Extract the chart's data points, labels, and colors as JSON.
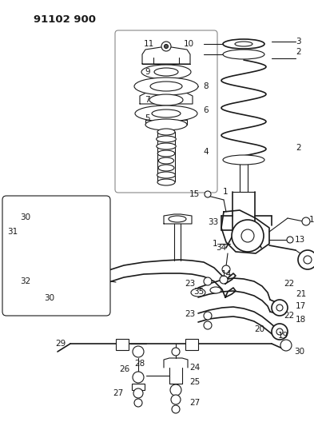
{
  "title": "91102 900",
  "bg_color": "#ffffff",
  "line_color": "#1a1a1a",
  "label_color": "#1a1a1a",
  "title_fontsize": 9.5,
  "label_fontsize": 7.5,
  "fig_width": 3.93,
  "fig_height": 5.33,
  "dpi": 100
}
